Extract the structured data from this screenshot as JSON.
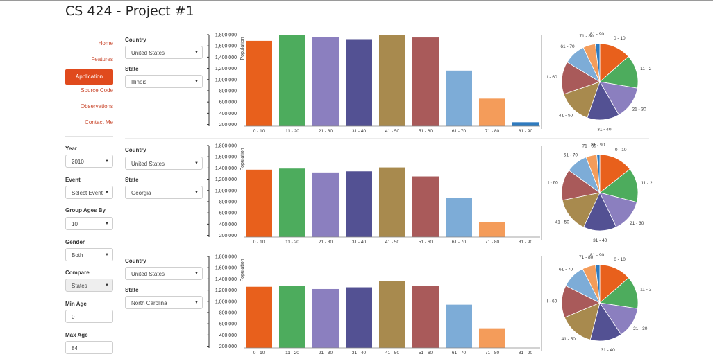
{
  "page": {
    "title": "CS 424 - Project #1"
  },
  "nav": {
    "items": [
      {
        "label": "Home",
        "active": false
      },
      {
        "label": "Features",
        "active": false
      },
      {
        "label": "Application",
        "active": true
      },
      {
        "label": "Source Code",
        "active": false
      },
      {
        "label": "Observations",
        "active": false
      },
      {
        "label": "Contact Me",
        "active": false
      }
    ]
  },
  "controls": {
    "year": {
      "label": "Year",
      "value": "2010"
    },
    "event": {
      "label": "Event",
      "value": "Select Event"
    },
    "group": {
      "label": "Group Ages By",
      "value": "10"
    },
    "gender": {
      "label": "Gender",
      "value": "Both"
    },
    "compare": {
      "label": "Compare",
      "value": "States"
    },
    "min_age": {
      "label": "Min Age",
      "value": "0"
    },
    "max_age": {
      "label": "Max Age",
      "value": "84"
    }
  },
  "panels": [
    {
      "country_label": "Country",
      "country": "United States",
      "state_label": "State",
      "state": "Illinois"
    },
    {
      "country_label": "Country",
      "country": "United States",
      "state_label": "State",
      "state": "Georgia"
    },
    {
      "country_label": "Country",
      "country": "United States",
      "state_label": "State",
      "state": "North Carolina"
    }
  ],
  "chart_data": [
    {
      "type": "bar",
      "state": "Illinois",
      "ylabel": "Population",
      "ylim": [
        170000,
        1800000
      ],
      "yticks": [
        "200,000",
        "400,000",
        "600,000",
        "800,000",
        "1,000,000",
        "1,200,000",
        "1,400,000",
        "1,600,000",
        "1,800,000"
      ],
      "yvals": [
        200000,
        400000,
        600000,
        800000,
        1000000,
        1200000,
        1400000,
        1600000,
        1800000
      ],
      "categories": [
        "0 - 10",
        "11 - 20",
        "21 - 30",
        "31 - 40",
        "41 - 50",
        "51 - 60",
        "61 - 70",
        "71 - 80",
        "81 - 90"
      ],
      "values": [
        1690000,
        1790000,
        1760000,
        1720000,
        1800000,
        1750000,
        1160000,
        660000,
        240000
      ],
      "colors": [
        "#e8601c",
        "#4dac5d",
        "#8b7fbf",
        "#535193",
        "#a88a4e",
        "#a95a5a",
        "#7dacd7",
        "#f49c5a",
        "#2f7bbf"
      ]
    },
    {
      "type": "bar",
      "state": "Georgia",
      "ylabel": "Population",
      "ylim": [
        170000,
        1800000
      ],
      "yticks": [
        "200,000",
        "400,000",
        "600,000",
        "800,000",
        "1,000,000",
        "1,200,000",
        "1,400,000",
        "1,600,000",
        "1,800,000"
      ],
      "yvals": [
        200000,
        400000,
        600000,
        800000,
        1000000,
        1200000,
        1400000,
        1600000,
        1800000
      ],
      "categories": [
        "0 - 10",
        "11 - 20",
        "21 - 30",
        "31 - 40",
        "41 - 50",
        "51 - 60",
        "61 - 70",
        "71 - 80",
        "81 - 90"
      ],
      "values": [
        1370000,
        1390000,
        1320000,
        1340000,
        1410000,
        1250000,
        870000,
        440000,
        120000
      ],
      "colors": [
        "#e8601c",
        "#4dac5d",
        "#8b7fbf",
        "#535193",
        "#a88a4e",
        "#a95a5a",
        "#7dacd7",
        "#f49c5a",
        "#2f7bbf"
      ]
    },
    {
      "type": "bar",
      "state": "North Carolina",
      "ylabel": "Population",
      "ylim": [
        170000,
        1800000
      ],
      "yticks": [
        "200,000",
        "400,000",
        "600,000",
        "800,000",
        "1,000,000",
        "1,200,000",
        "1,400,000",
        "1,600,000",
        "1,800,000"
      ],
      "yvals": [
        200000,
        400000,
        600000,
        800000,
        1000000,
        1200000,
        1400000,
        1600000,
        1800000
      ],
      "categories": [
        "0 - 10",
        "11 - 20",
        "21 - 30",
        "31 - 40",
        "41 - 50",
        "51 - 60",
        "61 - 70",
        "71 - 80",
        "81 - 90"
      ],
      "values": [
        1260000,
        1280000,
        1220000,
        1250000,
        1360000,
        1270000,
        940000,
        520000,
        170000
      ],
      "colors": [
        "#e8601c",
        "#4dac5d",
        "#8b7fbf",
        "#535193",
        "#a88a4e",
        "#a95a5a",
        "#7dacd7",
        "#f49c5a",
        "#2f7bbf"
      ]
    }
  ],
  "pie_data": [
    {
      "type": "pie",
      "state": "Illinois",
      "labels": [
        "0 - 10",
        "11 - 2",
        "21 - 30",
        "31 - 40",
        "41 - 50",
        "l - 60",
        "61 - 70",
        "71 - 80",
        "81 - 90"
      ],
      "values": [
        1690000,
        1790000,
        1760000,
        1720000,
        1800000,
        1750000,
        1160000,
        660000,
        240000
      ],
      "colors": [
        "#e8601c",
        "#4dac5d",
        "#8b7fbf",
        "#535193",
        "#a88a4e",
        "#a95a5a",
        "#7dacd7",
        "#f49c5a",
        "#2f7bbf"
      ]
    },
    {
      "type": "pie",
      "state": "Georgia",
      "labels": [
        "0 - 10",
        "11 - 2",
        "21 - 30",
        "31 - 40",
        "41 - 50",
        "l - 60",
        "61 - 70",
        "71 - 80",
        "81 - 90"
      ],
      "values": [
        1370000,
        1390000,
        1320000,
        1340000,
        1410000,
        1250000,
        870000,
        440000,
        120000
      ],
      "colors": [
        "#e8601c",
        "#4dac5d",
        "#8b7fbf",
        "#535193",
        "#a88a4e",
        "#a95a5a",
        "#7dacd7",
        "#f49c5a",
        "#2f7bbf"
      ]
    },
    {
      "type": "pie",
      "state": "North Carolina",
      "labels": [
        "0 - 10",
        "11 - 2",
        "21 - 30",
        "31 - 40",
        "41 - 50",
        "l - 60",
        "61 - 70",
        "71 - 80",
        "81 - 90"
      ],
      "values": [
        1260000,
        1280000,
        1220000,
        1250000,
        1360000,
        1270000,
        940000,
        520000,
        170000
      ],
      "colors": [
        "#e8601c",
        "#4dac5d",
        "#8b7fbf",
        "#535193",
        "#a88a4e",
        "#a95a5a",
        "#7dacd7",
        "#f49c5a",
        "#2f7bbf"
      ]
    }
  ]
}
